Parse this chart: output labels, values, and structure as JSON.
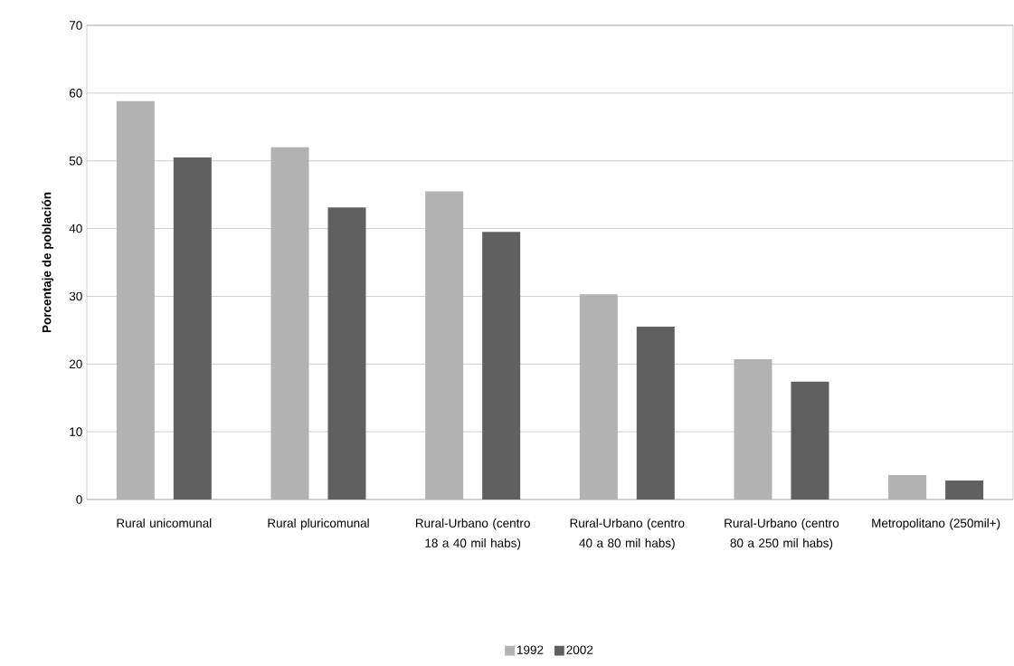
{
  "chart_data": {
    "type": "bar",
    "ylabel": "Porcentaje  de población",
    "categories": [
      "Rural unicomunal",
      "Rural pluricomunal",
      "Rural-Urbano (centro 18 a 40 mil habs)",
      "Rural-Urbano (centro 40 a 80 mil habs)",
      "Rural-Urbano (centro 80 a 250 mil habs)",
      "Metropolitano (250mil+)"
    ],
    "series": [
      {
        "name": "1992",
        "color": "#b2b2b2",
        "values": [
          58.8,
          52.0,
          45.5,
          30.3,
          20.7,
          3.6
        ]
      },
      {
        "name": "2002",
        "color": "#606060",
        "values": [
          50.5,
          43.1,
          39.5,
          25.5,
          17.4,
          2.8
        ]
      }
    ],
    "ylim": [
      0,
      70
    ],
    "yticks": [
      0,
      10,
      20,
      30,
      40,
      50,
      60,
      70
    ],
    "grid": "y",
    "legend": "bottom"
  }
}
